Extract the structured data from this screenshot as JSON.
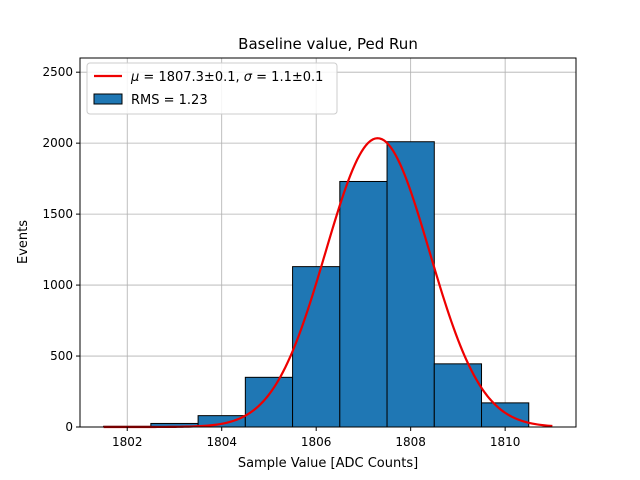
{
  "chart_data": {
    "type": "bar",
    "title": "Baseline value, Ped Run",
    "xlabel": "Sample Value [ADC Counts]",
    "ylabel": "Events",
    "xlim": [
      1801.0,
      1811.5
    ],
    "ylim": [
      0,
      2600
    ],
    "xticks": [
      1802,
      1804,
      1806,
      1808,
      1810
    ],
    "yticks": [
      0,
      500,
      1000,
      1500,
      2000,
      2500
    ],
    "grid": true,
    "legend_position": "top-left",
    "histogram": {
      "bin_edges": [
        1801.5,
        1802.5,
        1803.5,
        1804.5,
        1805.5,
        1806.5,
        1807.5,
        1808.5,
        1809.5,
        1810.5
      ],
      "counts": [
        5,
        25,
        80,
        350,
        1130,
        1730,
        2010,
        445,
        170
      ],
      "color": "#1f77b4",
      "edge_color": "#000000",
      "legend_label": "RMS = 1.23"
    },
    "fit": {
      "type": "gaussian",
      "amplitude": 2035,
      "mu": 1807.3,
      "sigma": 1.1,
      "x_range": [
        1801.5,
        1811.0
      ],
      "color": "#ee0000",
      "legend_label": "$\\mu = 1807.3$±0.1, $\\sigma = 1.1$±0.1"
    }
  }
}
